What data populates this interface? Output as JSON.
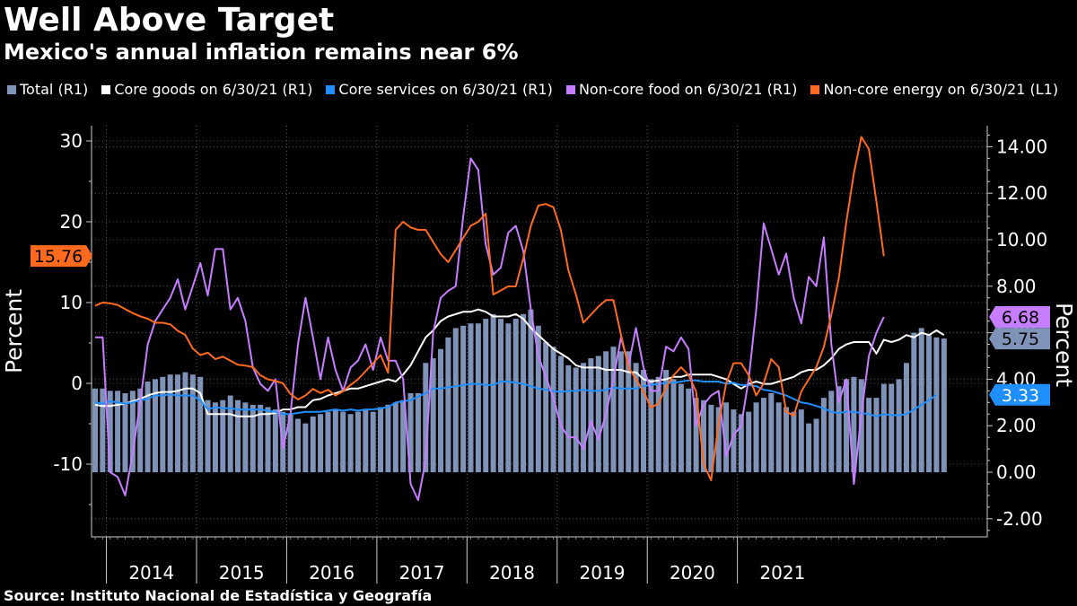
{
  "title": "Well Above Target",
  "subtitle": "Mexico's annual inflation remains near 6%",
  "source": "Source: Instituto Nacional de Estadística y Geografía",
  "legend": [
    {
      "label": "Total (R1)",
      "color": "#7f93b8",
      "shape": "square"
    },
    {
      "label": "Core goods on 6/30/21 (R1)",
      "color": "#ffffff",
      "shape": "square"
    },
    {
      "label": "Core services on 6/30/21 (R1)",
      "color": "#1f8fff",
      "shape": "square"
    },
    {
      "label": "Non-core food on 6/30/21 (R1)",
      "color": "#c77dff",
      "shape": "square"
    },
    {
      "label": "Non-core energy on 6/30/21 (L1)",
      "color": "#ff6a1f",
      "shape": "square"
    }
  ],
  "chart_data": {
    "type": "bar",
    "title": "Well Above Target",
    "subtitle": "Mexico's annual inflation remains near 6%",
    "x_axis": {
      "type": "time",
      "start": "2013-11",
      "end": "2021-06",
      "year_labels": [
        "2014",
        "2015",
        "2016",
        "2017",
        "2018",
        "2019",
        "2020",
        "2021"
      ]
    },
    "y_left": {
      "label": "Percent",
      "range": [
        -17,
        33.5
      ],
      "ticks": [
        -10,
        0,
        10,
        20,
        30
      ],
      "tick_labels": [
        "-10",
        "0",
        "10",
        "20",
        "30"
      ],
      "grid": [
        -10,
        0,
        10,
        20,
        30
      ]
    },
    "y_right": {
      "label": "Percent",
      "range": [
        -2.8,
        14.85
      ],
      "ticks": [
        -2,
        0,
        2,
        4,
        6,
        8,
        10,
        12,
        14
      ],
      "tick_labels": [
        "-2.00",
        "0.00",
        "2.00",
        "4.00",
        "6.00",
        "8.00",
        "10.00",
        "12.00",
        "14.00"
      ],
      "grid": [
        -2,
        4,
        6,
        8,
        10,
        12,
        14
      ]
    },
    "last_value_tags": [
      {
        "value": "15.76",
        "axis": "left",
        "color": "#ff6a1f",
        "text_color": "#000000",
        "series": "Non-core energy on 6/30/21 (L1)"
      },
      {
        "value": "6.68",
        "axis": "right",
        "color": "#c77dff",
        "text_color": "#000000",
        "series": "Non-core food on 6/30/21 (R1)"
      },
      {
        "value": "5.75",
        "axis": "right",
        "color": "#7f93b8",
        "text_color": "#000000",
        "series": "Total (R1)"
      },
      {
        "value": "3.33",
        "axis": "right",
        "color": "#1f8fff",
        "text_color": "#ffffff",
        "series": "Core services on 6/30/21 (R1)"
      }
    ],
    "series": [
      {
        "name": "Total (R1)",
        "type": "bar",
        "axis": "right",
        "color": "#7f93b8",
        "values": [
          3.6,
          3.6,
          3.5,
          3.5,
          3.4,
          3.5,
          3.6,
          3.9,
          4.0,
          4.1,
          4.2,
          4.2,
          4.3,
          4.2,
          4.1,
          3.1,
          3.0,
          3.1,
          3.3,
          3.1,
          3.0,
          2.9,
          2.9,
          2.8,
          2.7,
          2.6,
          2.5,
          2.3,
          2.1,
          2.4,
          2.5,
          2.6,
          2.7,
          2.6,
          2.5,
          2.6,
          2.7,
          2.6,
          2.8,
          2.9,
          3.0,
          3.1,
          3.4,
          3.4,
          4.7,
          4.9,
          5.3,
          5.8,
          6.2,
          6.3,
          6.4,
          6.4,
          6.6,
          6.8,
          6.6,
          6.4,
          6.6,
          6.8,
          7.0,
          6.3,
          5.6,
          5.4,
          5.0,
          4.6,
          4.5,
          4.7,
          4.9,
          5.0,
          5.2,
          5.4,
          5.2,
          5.2,
          4.7,
          4.4,
          4.0,
          4.1,
          4.4,
          4.0,
          3.8,
          3.6,
          3.2,
          3.1,
          2.9,
          2.8,
          3.0,
          2.7,
          2.5,
          2.6,
          3.0,
          3.2,
          3.4,
          3.0,
          2.8,
          2.6,
          2.7,
          2.1,
          2.3,
          3.2,
          3.5,
          3.7,
          4.0,
          4.1,
          4.0,
          3.2,
          3.2,
          3.8,
          3.8,
          4.0,
          4.7,
          6.0,
          6.2,
          5.9,
          5.8,
          5.75
        ]
      },
      {
        "name": "Core goods on 6/30/21 (R1)",
        "type": "line",
        "axis": "right",
        "color": "#ffffff",
        "values": [
          2.9,
          2.85,
          2.85,
          2.9,
          2.95,
          3.05,
          3.15,
          3.3,
          3.4,
          3.45,
          3.45,
          3.5,
          3.6,
          3.6,
          3.4,
          2.5,
          2.5,
          2.5,
          2.5,
          2.4,
          2.4,
          2.4,
          2.5,
          2.5,
          2.55,
          2.7,
          2.7,
          2.8,
          2.8,
          3.1,
          3.15,
          3.3,
          3.4,
          3.5,
          3.6,
          3.6,
          3.7,
          3.8,
          3.9,
          4.0,
          3.9,
          4.2,
          4.6,
          5.2,
          5.8,
          6.1,
          6.5,
          6.7,
          6.8,
          6.9,
          6.9,
          7.0,
          6.9,
          6.7,
          6.7,
          6.7,
          6.8,
          6.6,
          6.2,
          5.9,
          5.6,
          5.3,
          5.1,
          4.9,
          4.6,
          4.5,
          4.5,
          4.5,
          4.4,
          4.4,
          4.4,
          4.3,
          4.3,
          4.0,
          3.9,
          3.95,
          4.0,
          4.1,
          4.1,
          4.2,
          4.2,
          4.2,
          4.2,
          4.1,
          4.0,
          3.8,
          3.6,
          3.8,
          3.9,
          3.8,
          3.8,
          3.9,
          4.0,
          4.1,
          4.3,
          4.4,
          4.4,
          4.6,
          4.9,
          5.3,
          5.5,
          5.6,
          5.6,
          5.6,
          5.1,
          5.7,
          5.6,
          5.7,
          5.9,
          5.8,
          6.0,
          5.9,
          6.1,
          5.9
        ]
      },
      {
        "name": "Core services on 6/30/21 (R1)",
        "type": "line",
        "axis": "right",
        "color": "#1f8fff",
        "values": [
          3.0,
          2.95,
          3.05,
          3.0,
          2.95,
          3.0,
          3.1,
          3.15,
          3.3,
          3.3,
          3.35,
          3.3,
          3.3,
          3.3,
          3.1,
          2.7,
          2.8,
          2.75,
          2.75,
          2.7,
          2.7,
          2.7,
          2.7,
          2.65,
          2.6,
          2.5,
          2.5,
          2.55,
          2.6,
          2.6,
          2.6,
          2.65,
          2.7,
          2.65,
          2.7,
          2.65,
          2.7,
          2.7,
          2.75,
          2.8,
          3.0,
          3.05,
          3.1,
          3.25,
          3.4,
          3.6,
          3.6,
          3.65,
          3.7,
          3.75,
          3.8,
          3.8,
          3.75,
          3.75,
          3.9,
          3.9,
          3.85,
          3.8,
          3.7,
          3.6,
          3.55,
          3.5,
          3.45,
          3.5,
          3.5,
          3.55,
          3.5,
          3.5,
          3.55,
          3.65,
          3.6,
          3.6,
          3.6,
          3.7,
          3.75,
          3.8,
          3.85,
          3.85,
          3.9,
          3.95,
          3.95,
          3.9,
          3.9,
          3.9,
          3.8,
          3.85,
          3.75,
          3.75,
          3.7,
          3.55,
          3.5,
          3.4,
          3.3,
          3.15,
          3.0,
          2.95,
          2.85,
          2.75,
          2.6,
          2.55,
          2.6,
          2.6,
          2.55,
          2.5,
          2.4,
          2.5,
          2.45,
          2.45,
          2.5,
          2.7,
          2.9,
          3.1,
          3.33
        ]
      },
      {
        "name": "Non-core food on 6/30/21 (R1)",
        "type": "line",
        "axis": "right",
        "color": "#c77dff",
        "values": [
          5.8,
          5.8,
          0.0,
          -0.2,
          -1.0,
          0.8,
          3.0,
          5.5,
          6.5,
          7.0,
          7.5,
          8.3,
          7.0,
          8.0,
          9.0,
          7.6,
          9.6,
          9.6,
          7.0,
          7.5,
          6.5,
          4.5,
          3.8,
          3.5,
          4.0,
          1.0,
          2.5,
          5.5,
          7.5,
          5.8,
          4.0,
          5.8,
          4.4,
          3.5,
          4.5,
          4.8,
          5.5,
          4.4,
          5.8,
          4.8,
          4.8,
          4.0,
          -0.5,
          -1.2,
          0.5,
          6.0,
          7.5,
          7.8,
          8.0,
          11.0,
          13.5,
          13.0,
          9.8,
          8.5,
          8.8,
          10.3,
          10.6,
          9.5,
          7.0,
          5.0,
          4.1,
          3.2,
          2.0,
          1.5,
          1.5,
          1.0,
          2.2,
          1.4,
          2.5,
          4.0,
          5.8,
          4.6,
          6.2,
          4.5,
          3.5,
          3.5,
          5.4,
          5.2,
          5.8,
          5.3,
          2.0,
          2.9,
          3.3,
          3.5,
          0.7,
          1.6,
          2.0,
          4.0,
          7.0,
          10.7,
          9.6,
          8.5,
          9.4,
          7.5,
          6.4,
          8.4,
          8.0,
          10.1,
          5.5,
          3.0,
          4.0,
          -0.5,
          2.5,
          5.0,
          6.0,
          6.68
        ]
      },
      {
        "name": "Non-core energy on 6/30/21 (L1)",
        "type": "line",
        "axis": "left",
        "color": "#ff6a1f",
        "values": [
          9.6,
          10.0,
          9.9,
          9.7,
          9.2,
          8.7,
          8.3,
          8.0,
          7.5,
          7.5,
          7.3,
          6.5,
          6.0,
          4.3,
          3.5,
          3.8,
          3.0,
          3.3,
          2.8,
          2.3,
          2.2,
          2.0,
          1.0,
          0.5,
          0.3,
          0.0,
          -1.3,
          -2.0,
          -1.5,
          -0.7,
          -1.2,
          -0.8,
          -1.5,
          -1.0,
          -0.2,
          0.5,
          1.5,
          2.5,
          3.5,
          1.3,
          19.0,
          20.0,
          19.3,
          19.0,
          19.0,
          17.5,
          16.0,
          15.0,
          16.5,
          18.0,
          19.5,
          20.0,
          21.0,
          11.0,
          11.5,
          12.0,
          12.0,
          15.5,
          19.5,
          22.0,
          22.2,
          21.8,
          19.0,
          14.0,
          11.0,
          7.5,
          8.5,
          9.5,
          10.3,
          10.3,
          6.0,
          2.0,
          0.5,
          -1.0,
          -3.0,
          -2.5,
          -0.5,
          1.0,
          2.0,
          1.0,
          -1.0,
          -10.0,
          -12.0,
          -5.0,
          0.0,
          2.5,
          2.5,
          1.0,
          -1.5,
          0.0,
          3.0,
          2.0,
          -3.5,
          -4.0,
          -1.0,
          0.5,
          2.0,
          4.5,
          8.5,
          13.0,
          20.0,
          26.0,
          30.5,
          29.0,
          22.5,
          15.76
        ]
      }
    ]
  }
}
